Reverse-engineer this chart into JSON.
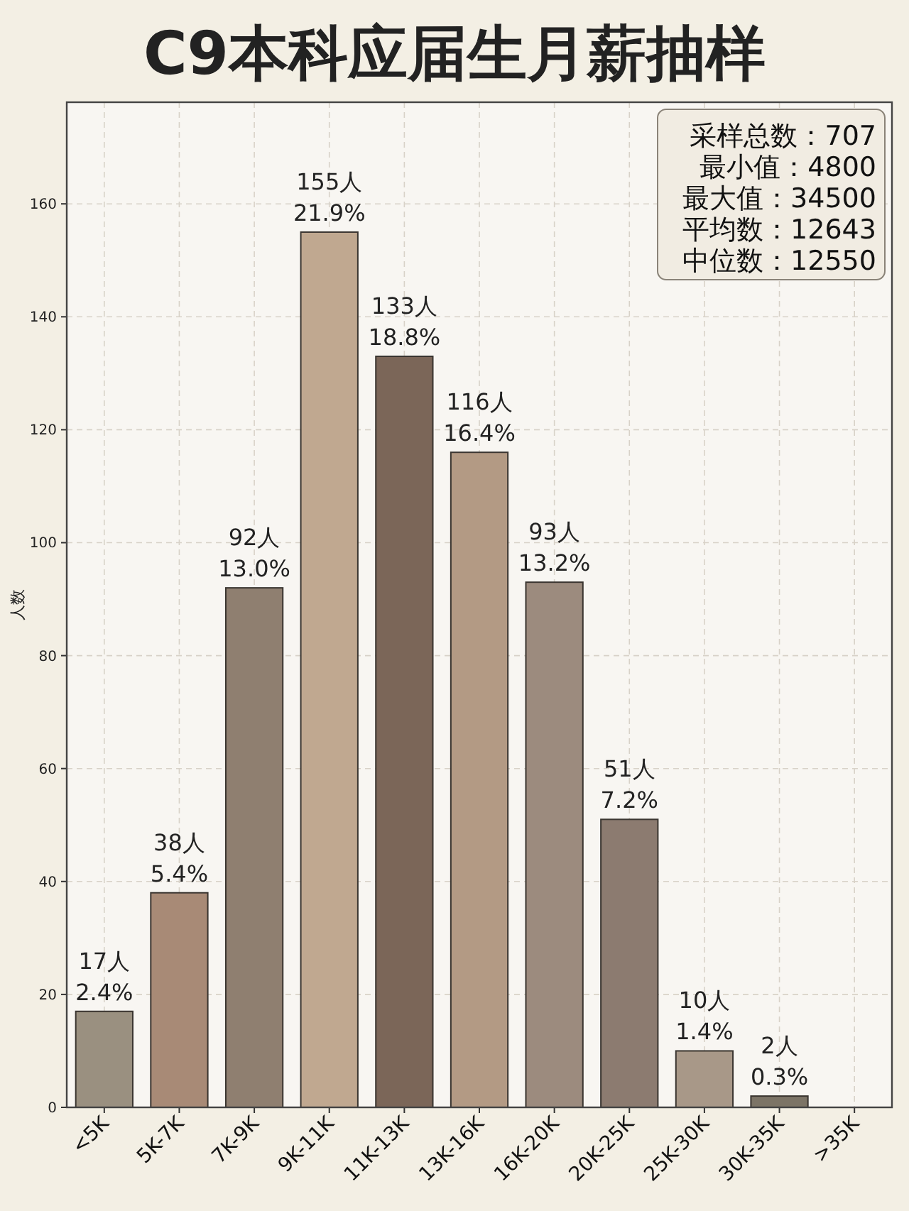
{
  "chart_data": {
    "type": "bar",
    "title": "C9本科应届生月薪抽样",
    "ylabel": "人数",
    "categories": [
      "<5K",
      "5K-7K",
      "7K-9K",
      "9K-11K",
      "11K-13K",
      "13K-16K",
      "16K-20K",
      "20K-25K",
      "25K-30K",
      "30K-35K",
      ">35K"
    ],
    "values": [
      17,
      38,
      92,
      155,
      133,
      116,
      93,
      51,
      10,
      2,
      0
    ],
    "colors": [
      "#9a9080",
      "#a88a76",
      "#8f7f70",
      "#c0a890",
      "#7b6658",
      "#b39a84",
      "#9c8b7e",
      "#8c7b70",
      "#a89888",
      "#7c7466",
      "#8a8078"
    ],
    "value_labels": [
      "17人\n2.4%",
      "38人\n5.4%",
      "92人\n13.0%",
      "155人\n21.9%",
      "133人\n18.8%",
      "116人\n16.4%",
      "93人\n13.2%",
      "51人\n7.2%",
      "10人\n1.4%",
      "2人\n0.3%",
      null
    ],
    "ylim": [
      0,
      178
    ],
    "yticks": [
      0,
      20,
      40,
      60,
      80,
      100,
      120,
      140,
      160
    ],
    "grid": true,
    "annotations": [
      "采样总数：707",
      "最小值：4800",
      "最大值：34500",
      "平均数：12643",
      "中位数：12550"
    ]
  }
}
